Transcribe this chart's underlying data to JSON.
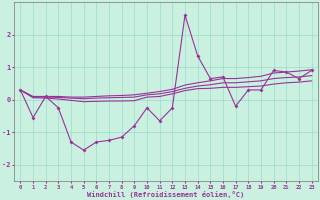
{
  "xlabel": "Windchill (Refroidissement éolien,°C)",
  "background_color": "#caf0e0",
  "grid_color": "#99ddcc",
  "line_color": "#993399",
  "x": [
    0,
    1,
    2,
    3,
    4,
    5,
    6,
    7,
    8,
    9,
    10,
    11,
    12,
    13,
    14,
    15,
    16,
    17,
    18,
    19,
    20,
    21,
    22,
    23
  ],
  "line1": [
    0.3,
    -0.55,
    0.1,
    -0.25,
    -1.3,
    -1.55,
    -1.3,
    -1.25,
    -1.15,
    -0.8,
    -0.25,
    -0.65,
    -0.25,
    2.6,
    1.35,
    0.65,
    0.7,
    -0.2,
    0.3,
    0.3,
    0.9,
    0.85,
    0.65,
    0.9
  ],
  "line2": [
    0.3,
    0.1,
    0.1,
    0.1,
    0.08,
    0.08,
    0.1,
    0.12,
    0.13,
    0.15,
    0.2,
    0.25,
    0.32,
    0.45,
    0.52,
    0.58,
    0.65,
    0.65,
    0.68,
    0.72,
    0.82,
    0.85,
    0.88,
    0.92
  ],
  "line3": [
    0.3,
    0.08,
    0.08,
    0.07,
    0.05,
    0.03,
    0.05,
    0.06,
    0.07,
    0.08,
    0.15,
    0.18,
    0.25,
    0.35,
    0.42,
    0.46,
    0.52,
    0.52,
    0.55,
    0.58,
    0.65,
    0.68,
    0.7,
    0.74
  ],
  "line4": [
    0.3,
    0.06,
    0.05,
    0.02,
    -0.02,
    -0.06,
    -0.05,
    -0.04,
    -0.04,
    -0.03,
    0.08,
    0.1,
    0.18,
    0.28,
    0.34,
    0.35,
    0.38,
    0.38,
    0.4,
    0.42,
    0.48,
    0.52,
    0.54,
    0.58
  ],
  "ylim": [
    -2.5,
    3.0
  ],
  "yticks": [
    -2,
    -1,
    0,
    1,
    2
  ],
  "figsize": [
    3.2,
    2.0
  ],
  "dpi": 100
}
